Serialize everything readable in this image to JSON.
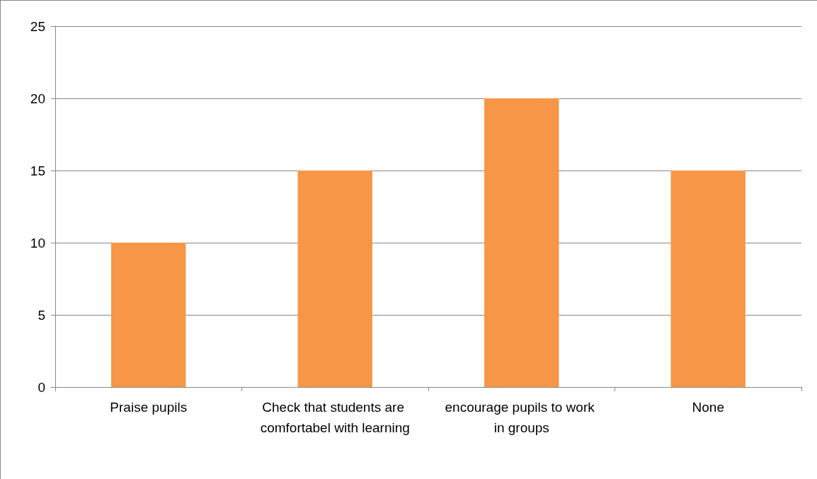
{
  "chart_data": {
    "type": "bar",
    "categories": [
      "Praise pupils",
      "Check that students are comfortabel with learning",
      "encourage pupils to work in groups",
      "None"
    ],
    "values": [
      10,
      15,
      20,
      15
    ],
    "color": "#f79646",
    "ylim": [
      0,
      25
    ],
    "yticks": [
      0,
      5,
      10,
      15,
      20,
      25
    ],
    "grid": "y"
  }
}
